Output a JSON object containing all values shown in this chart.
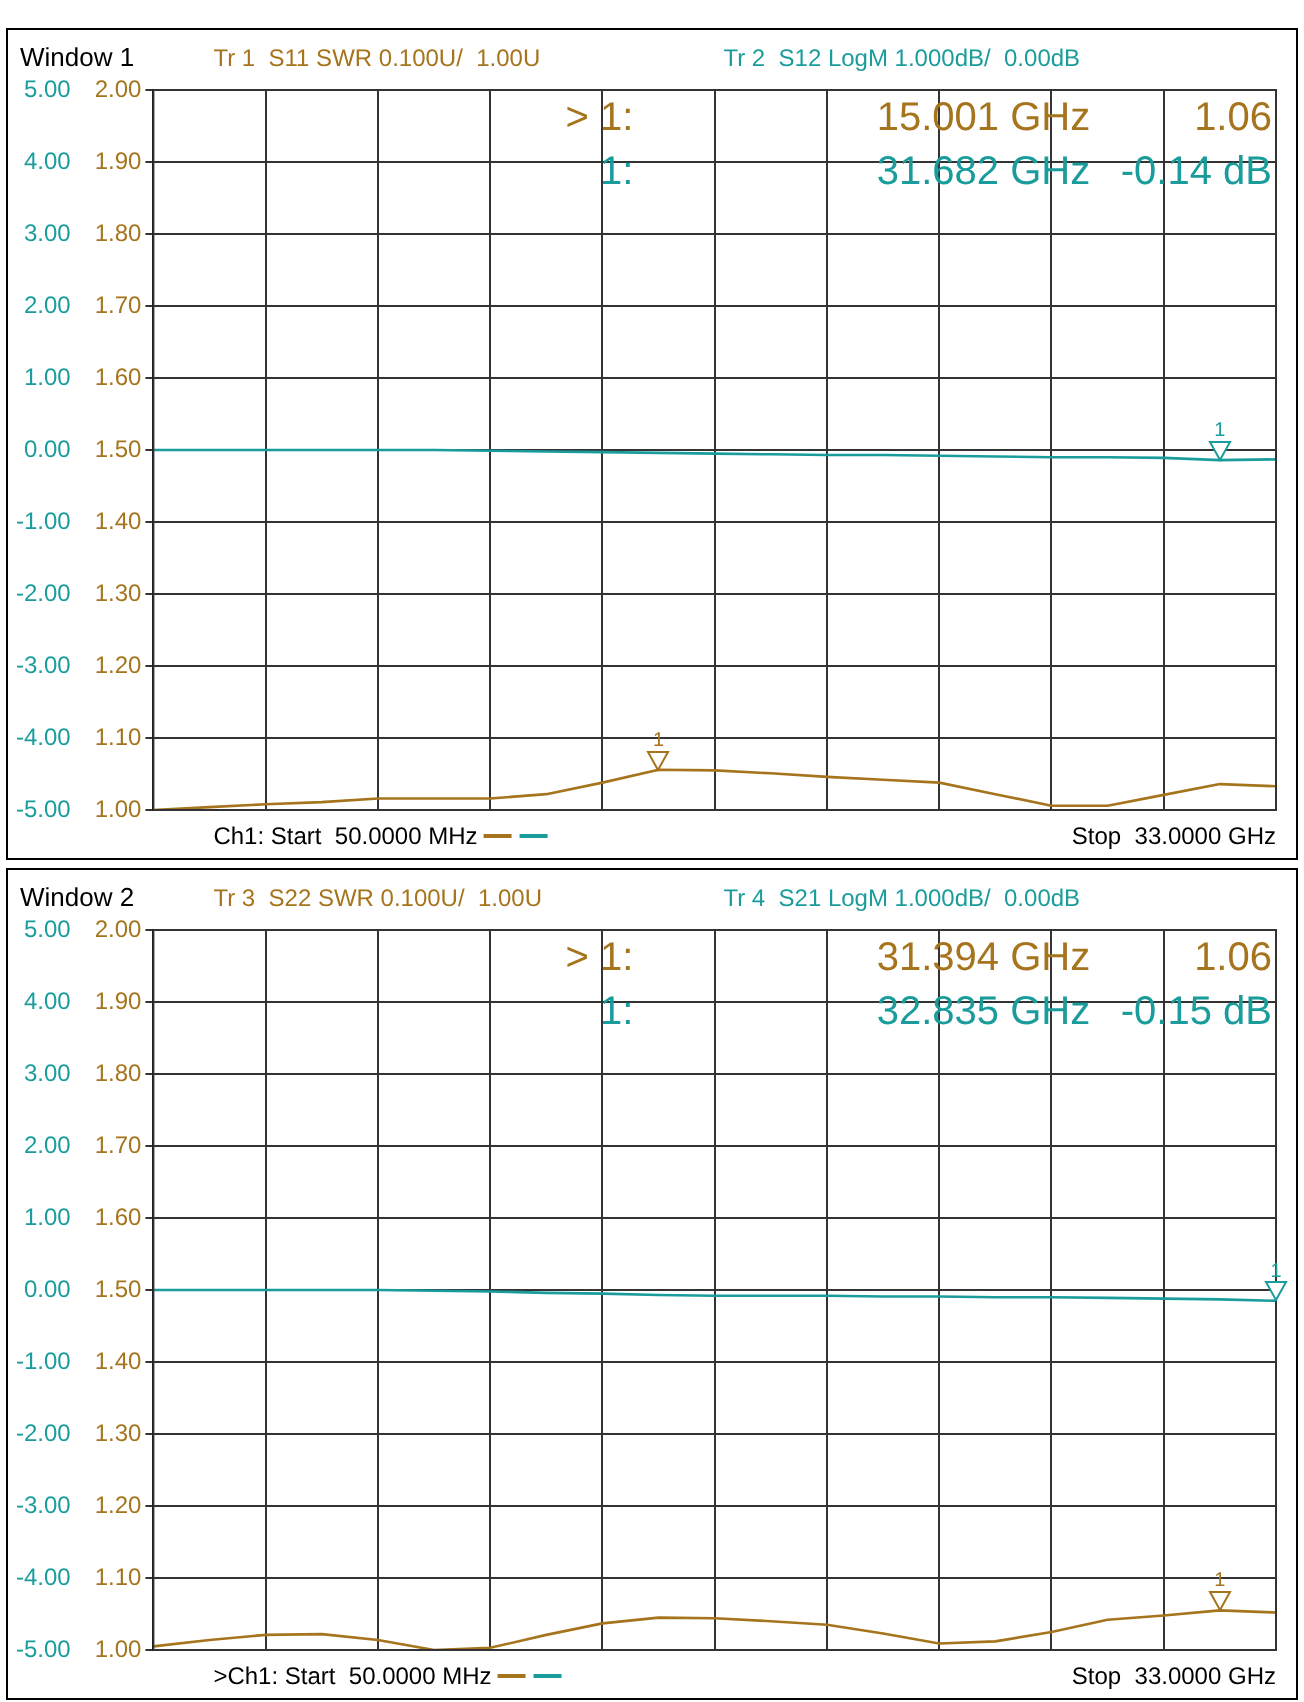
{
  "chart_data": [
    {
      "type": "line",
      "title": "Window 1",
      "categories": [
        null,
        null,
        null,
        null,
        null,
        null,
        null,
        null,
        null,
        null,
        null,
        null,
        null,
        null,
        null,
        null,
        null,
        null,
        null,
        null,
        null
      ],
      "ylim": [
        1.0,
        2.0
      ],
      "yticks": [
        {
          "value": 1.0,
          "label": "1.00"
        },
        {
          "value": 1.1,
          "label": "1.10"
        },
        {
          "value": 1.2,
          "label": "1.20"
        },
        {
          "value": 1.3,
          "label": "1.30"
        },
        {
          "value": 1.4,
          "label": "1.40"
        },
        {
          "value": 1.5,
          "label": "1.50"
        },
        {
          "value": 1.6,
          "label": "1.60"
        },
        {
          "value": 1.7,
          "label": "1.70"
        },
        {
          "value": 1.8,
          "label": "1.80"
        },
        {
          "value": 1.9,
          "label": "1.90"
        },
        {
          "value": 2.0,
          "label": "2.00"
        }
      ],
      "y2lim": [
        -5,
        5
      ],
      "y2ticks": [
        {
          "value": -5,
          "label": "-5.00"
        },
        {
          "value": -4,
          "label": "-4.00"
        },
        {
          "value": -3,
          "label": "-3.00"
        },
        {
          "value": -2,
          "label": "-2.00"
        },
        {
          "value": -1,
          "label": "-1.00"
        },
        {
          "value": 0,
          "label": "0.00"
        },
        {
          "value": 1,
          "label": "1.00"
        },
        {
          "value": 2,
          "label": "2.00"
        },
        {
          "value": 3,
          "label": "3.00"
        },
        {
          "value": 4,
          "label": "4.00"
        },
        {
          "value": 5,
          "label": "5.00"
        }
      ],
      "tick_labels": "y",
      "grid": true,
      "legend": false,
      "marker": "none",
      "line_style": "solid",
      "series": [
        {
          "name": "Tr 1  S11 SWR 0.100U/  1.00U",
          "color": "#a5741c",
          "values": [
            1.0,
            1.004,
            1.008,
            1.011,
            1.016,
            1.016,
            1.016,
            1.022,
            1.038,
            1.056,
            1.055,
            1.051,
            1.046,
            1.042,
            1.038,
            1.022,
            1.006,
            1.006,
            1.021,
            1.036,
            1.033
          ]
        },
        {
          "name": "Tr 2  S12 LogM 1.000dB/  0.00dB",
          "color": "#1a9c9c",
          "axis": "y2",
          "values": [
            0,
            0,
            0,
            0,
            0,
            0,
            -0.01,
            -0.02,
            -0.03,
            -0.04,
            -0.05,
            -0.06,
            -0.07,
            -0.07,
            -0.08,
            -0.09,
            -0.1,
            -0.1,
            -0.11,
            -0.14,
            -0.13
          ]
        }
      ],
      "annotations": [
        "> 1:",
        "15.001 GHz",
        "1.06",
        "1:",
        "31.682 GHz",
        "-0.14 dB",
        "Ch1: Start  50.0000 MHz",
        "Stop  33.0000 GHz",
        "1",
        "1"
      ]
    },
    {
      "type": "line",
      "title": "Window 2",
      "categories": [
        null,
        null,
        null,
        null,
        null,
        null,
        null,
        null,
        null,
        null,
        null,
        null,
        null,
        null,
        null,
        null,
        null,
        null,
        null,
        null,
        null
      ],
      "ylim": [
        1.0,
        2.0
      ],
      "yticks": [
        {
          "value": 1.0,
          "label": "1.00"
        },
        {
          "value": 1.1,
          "label": "1.10"
        },
        {
          "value": 1.2,
          "label": "1.20"
        },
        {
          "value": 1.3,
          "label": "1.30"
        },
        {
          "value": 1.4,
          "label": "1.40"
        },
        {
          "value": 1.5,
          "label": "1.50"
        },
        {
          "value": 1.6,
          "label": "1.60"
        },
        {
          "value": 1.7,
          "label": "1.70"
        },
        {
          "value": 1.8,
          "label": "1.80"
        },
        {
          "value": 1.9,
          "label": "1.90"
        },
        {
          "value": 2.0,
          "label": "2.00"
        }
      ],
      "y2lim": [
        -5,
        5
      ],
      "y2ticks": [
        {
          "value": -5,
          "label": "-5.00"
        },
        {
          "value": -4,
          "label": "-4.00"
        },
        {
          "value": -3,
          "label": "-3.00"
        },
        {
          "value": -2,
          "label": "-2.00"
        },
        {
          "value": -1,
          "label": "-1.00"
        },
        {
          "value": 0,
          "label": "0.00"
        },
        {
          "value": 1,
          "label": "1.00"
        },
        {
          "value": 2,
          "label": "2.00"
        },
        {
          "value": 3,
          "label": "3.00"
        },
        {
          "value": 4,
          "label": "4.00"
        },
        {
          "value": 5,
          "label": "5.00"
        }
      ],
      "tick_labels": "y",
      "grid": true,
      "legend": false,
      "marker": "none",
      "line_style": "solid",
      "series": [
        {
          "name": "Tr 3  S22 SWR 0.100U/  1.00U",
          "color": "#a5741c",
          "values": [
            1.005,
            1.014,
            1.021,
            1.022,
            1.014,
            1.0,
            1.003,
            1.021,
            1.037,
            1.045,
            1.044,
            1.04,
            1.035,
            1.023,
            1.009,
            1.012,
            1.025,
            1.042,
            1.048,
            1.055,
            1.052
          ]
        },
        {
          "name": "Tr 4  S21 LogM 1.000dB/  0.00dB",
          "color": "#1a9c9c",
          "axis": "y2",
          "values": [
            0,
            0,
            0,
            0,
            0,
            -0.01,
            -0.02,
            -0.04,
            -0.05,
            -0.07,
            -0.08,
            -0.08,
            -0.08,
            -0.09,
            -0.09,
            -0.1,
            -0.1,
            -0.11,
            -0.12,
            -0.13,
            -0.15
          ]
        }
      ],
      "annotations": [
        "> 1:",
        "31.394 GHz",
        "1.06",
        "1:",
        "32.835 GHz",
        "-0.15 dB",
        ">Ch1: Start  50.0000 MHz",
        "Stop  33.0000 GHz",
        "1",
        "1"
      ]
    }
  ]
}
